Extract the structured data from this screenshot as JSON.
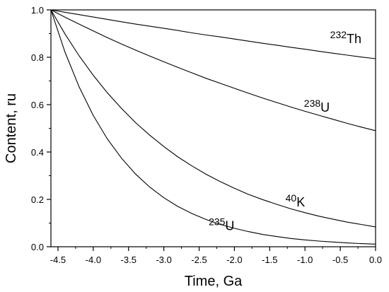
{
  "chart_data": {
    "type": "line",
    "title": "",
    "xlabel": "Time, Ga",
    "ylabel": "Content, ru",
    "xlim": [
      -4.6,
      0.0
    ],
    "ylim": [
      0.0,
      1.0
    ],
    "grid": false,
    "legend": "none",
    "x_ticks": [
      -4.5,
      -4.0,
      -3.5,
      -3.0,
      -2.5,
      -2.0,
      -1.5,
      -1.0,
      -0.5,
      0.0
    ],
    "x_tick_labels": [
      "-4.5",
      "-4.0",
      "-3.5",
      "-3.0",
      "-2.5",
      "-2.0",
      "-1.5",
      "-1.0",
      "-0.5",
      "0.0"
    ],
    "y_ticks": [
      0.0,
      0.2,
      0.4,
      0.6,
      0.8,
      1.0
    ],
    "y_tick_labels": [
      "0.0",
      "0.2",
      "0.4",
      "0.6",
      "0.8",
      "1.0"
    ],
    "x": [
      -4.6,
      -4.4,
      -4.2,
      -4.0,
      -3.8,
      -3.6,
      -3.4,
      -3.2,
      -3.0,
      -2.8,
      -2.6,
      -2.4,
      -2.2,
      -2.0,
      -1.8,
      -1.6,
      -1.4,
      -1.2,
      -1.0,
      -0.8,
      -0.6,
      -0.4,
      -0.2,
      0.0
    ],
    "series": [
      {
        "name": "Th",
        "label_mass": "232",
        "label_element": "Th",
        "label_at": [
          -0.2,
          0.86
        ],
        "values": [
          1.0,
          0.99,
          0.98,
          0.97,
          0.96,
          0.95,
          0.94,
          0.931,
          0.922,
          0.913,
          0.903,
          0.894,
          0.886,
          0.877,
          0.868,
          0.859,
          0.851,
          0.842,
          0.834,
          0.825,
          0.817,
          0.809,
          0.801,
          0.794
        ]
      },
      {
        "name": "U",
        "label_mass": "238",
        "label_element": "U",
        "label_at": [
          -0.65,
          0.57
        ],
        "values": [
          1.0,
          0.969,
          0.94,
          0.911,
          0.883,
          0.856,
          0.83,
          0.805,
          0.781,
          0.757,
          0.734,
          0.711,
          0.69,
          0.669,
          0.648,
          0.628,
          0.609,
          0.59,
          0.572,
          0.555,
          0.538,
          0.521,
          0.505,
          0.49
        ]
      },
      {
        "name": "K",
        "label_mass": "40",
        "label_element": "K",
        "label_at": [
          -1.0,
          0.17
        ],
        "values": [
          1.0,
          0.898,
          0.806,
          0.724,
          0.65,
          0.584,
          0.524,
          0.471,
          0.423,
          0.379,
          0.341,
          0.306,
          0.275,
          0.247,
          0.221,
          0.199,
          0.179,
          0.16,
          0.144,
          0.129,
          0.116,
          0.104,
          0.094,
          0.084
        ]
      },
      {
        "name": "U",
        "label_mass": "235",
        "label_element": "U",
        "label_at": [
          -2.0,
          0.07
        ],
        "values": [
          1.0,
          0.821,
          0.675,
          0.554,
          0.455,
          0.374,
          0.307,
          0.252,
          0.207,
          0.17,
          0.14,
          0.115,
          0.094,
          0.078,
          0.064,
          0.052,
          0.043,
          0.035,
          0.029,
          0.024,
          0.02,
          0.016,
          0.013,
          0.011
        ]
      }
    ]
  }
}
